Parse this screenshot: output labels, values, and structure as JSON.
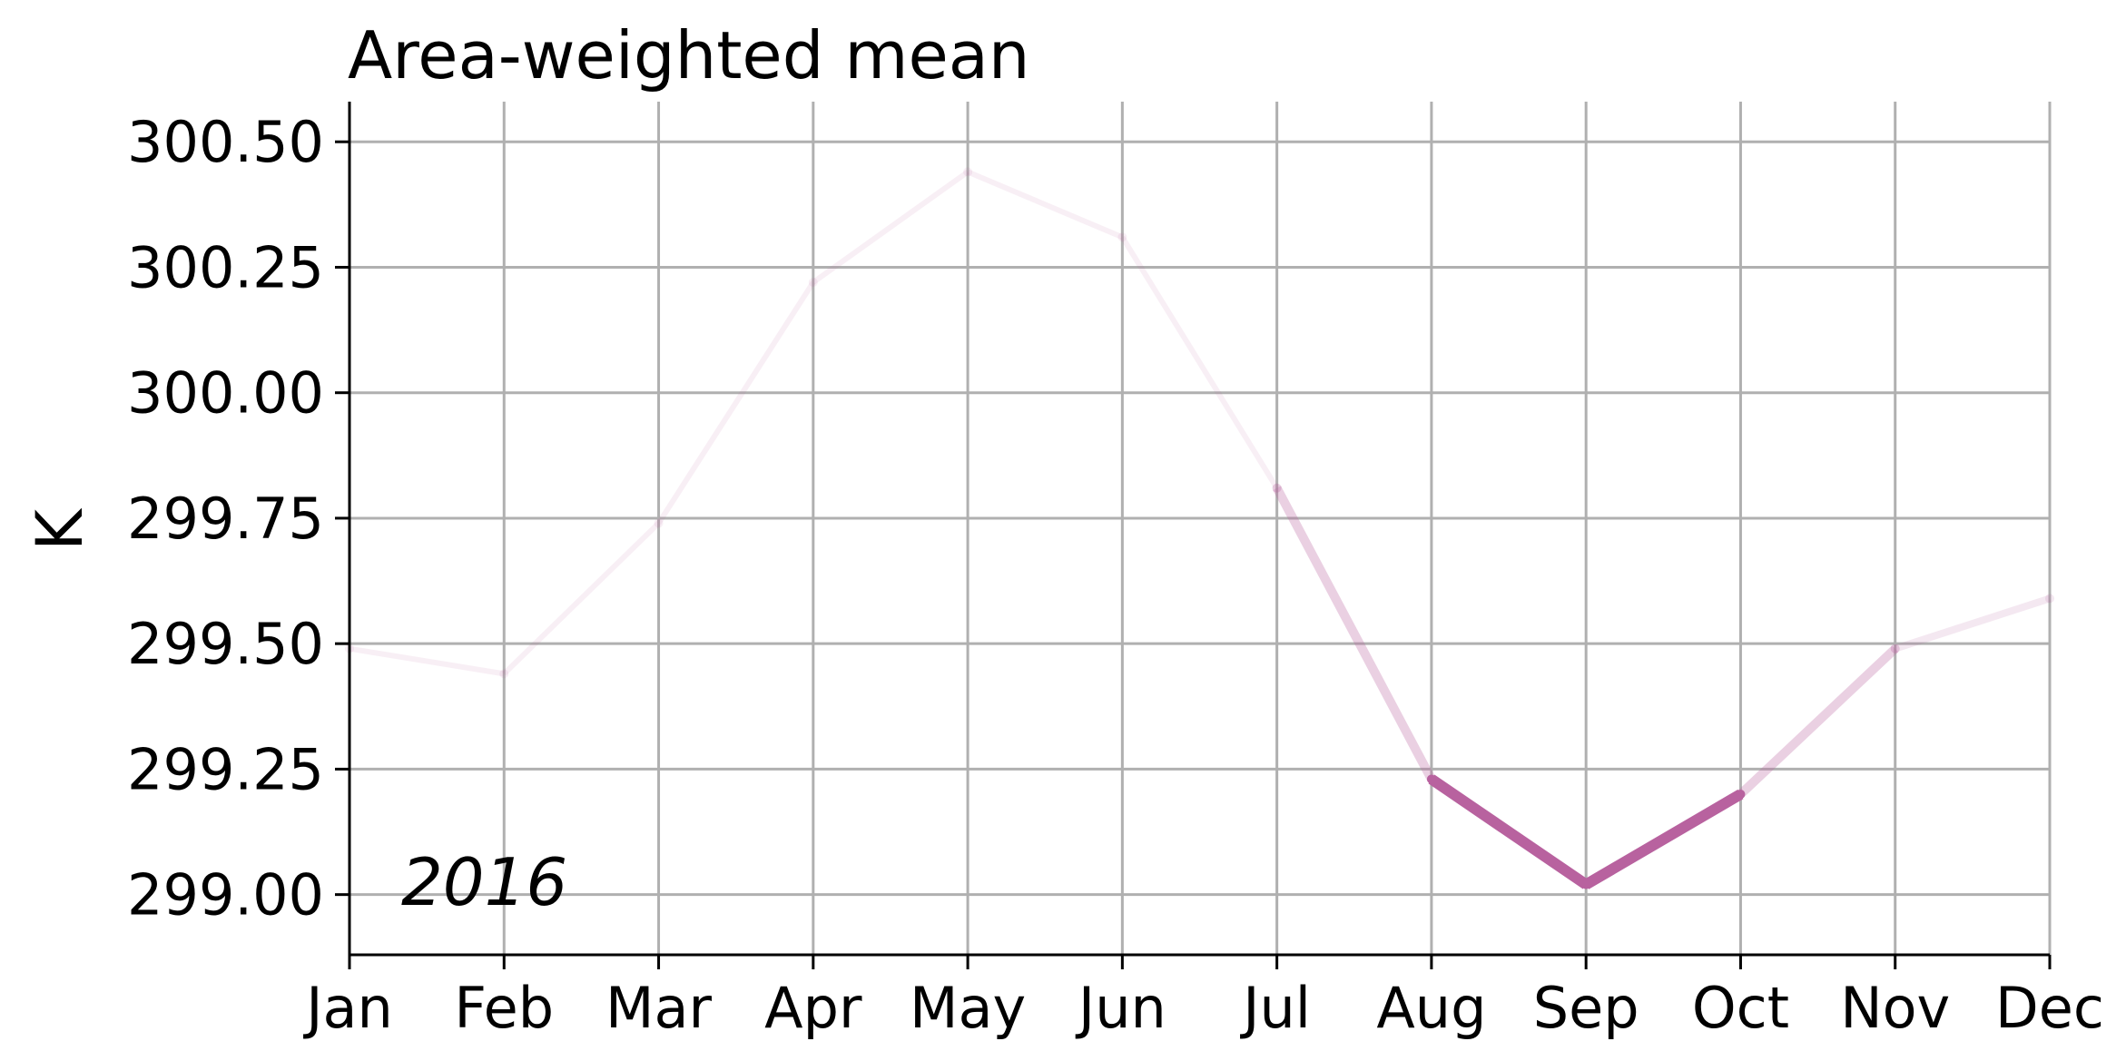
{
  "chart_data": {
    "type": "line",
    "title": "Area-weighted mean",
    "xlabel": "",
    "ylabel": "K",
    "annotation": "2016",
    "categories": [
      "Jan",
      "Feb",
      "Mar",
      "Apr",
      "May",
      "Jun",
      "Jul",
      "Aug",
      "Sep",
      "Oct",
      "Nov",
      "Dec"
    ],
    "series": [
      {
        "values": [
          299.49,
          299.44,
          299.74,
          300.22,
          300.44,
          300.31,
          299.81,
          299.23,
          299.02,
          299.2,
          299.49,
          299.59
        ],
        "segment_opacity": [
          0.1,
          0.1,
          0.1,
          0.1,
          0.1,
          0.1,
          0.3,
          1.0,
          1.0,
          0.3,
          0.15
        ],
        "segment_width": [
          1.5,
          1.5,
          1.5,
          1.5,
          1.5,
          1.5,
          2.5,
          3.0,
          3.0,
          2.5,
          2.0
        ],
        "color": "#b8629f"
      }
    ],
    "yticks": [
      299.0,
      299.25,
      299.5,
      299.75,
      300.0,
      300.25,
      300.5
    ],
    "ylim": [
      298.88,
      300.58
    ],
    "grid": true
  }
}
